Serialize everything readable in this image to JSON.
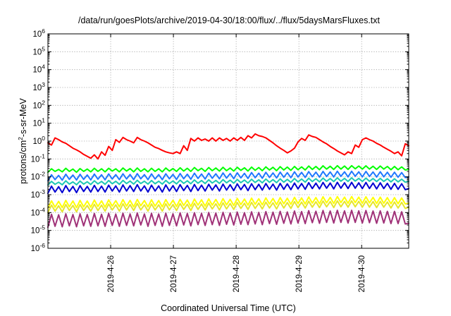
{
  "chart_data": {
    "type": "line",
    "title": "/data/run/goesPlots/archive/2019-04-30/18:00/flux/../flux/5daysMarsFluxes.txt",
    "xlabel": "Coordinated Universal Time (UTC)",
    "ylabel": {
      "prefix": "protons/cm",
      "sup": "2",
      "suffix": "-s-sr-MeV"
    },
    "x_start": "2019-04-25T00:00Z",
    "x_end": "2019-04-30T18:00Z",
    "x_ticks": [
      "2019-4-26",
      "2019-4-27",
      "2019-4-28",
      "2019-4-29",
      "2019-4-30"
    ],
    "y_scale": "log",
    "ylim": [
      1e-06,
      1000000.0
    ],
    "y_ticks": [
      {
        "base": "10",
        "exp": "-6"
      },
      {
        "base": "10",
        "exp": "-5"
      },
      {
        "base": "10",
        "exp": "-4"
      },
      {
        "base": "10",
        "exp": "-3"
      },
      {
        "base": "10",
        "exp": "-2"
      },
      {
        "base": "10",
        "exp": "-1"
      },
      {
        "base": "10",
        "exp": "0"
      },
      {
        "base": "10",
        "exp": "1"
      },
      {
        "base": "10",
        "exp": "2"
      },
      {
        "base": "10",
        "exp": "3"
      },
      {
        "base": "10",
        "exp": "4"
      },
      {
        "base": "10",
        "exp": "5"
      },
      {
        "base": "10",
        "exp": "6"
      }
    ],
    "grid": true,
    "series": [
      {
        "color": "#ff0000",
        "x": [
          "2019-04-25T00:00Z",
          "2019-04-25T01:22Z",
          "2019-04-25T02:44Z",
          "2019-04-25T04:06Z",
          "2019-04-25T05:28Z",
          "2019-04-25T06:50Z",
          "2019-04-25T08:12Z",
          "2019-04-25T09:34Z",
          "2019-04-25T10:56Z",
          "2019-04-25T12:18Z",
          "2019-04-25T13:40Z",
          "2019-04-25T15:02Z",
          "2019-04-25T16:24Z",
          "2019-04-25T17:46Z",
          "2019-04-25T19:08Z",
          "2019-04-25T20:30Z",
          "2019-04-25T21:52Z",
          "2019-04-25T23:14Z",
          "2019-04-26T00:36Z",
          "2019-04-26T01:58Z",
          "2019-04-26T03:20Z",
          "2019-04-26T04:42Z",
          "2019-04-26T06:04Z",
          "2019-04-26T07:26Z",
          "2019-04-26T08:48Z",
          "2019-04-26T10:10Z",
          "2019-04-26T11:32Z",
          "2019-04-26T12:54Z",
          "2019-04-26T14:16Z",
          "2019-04-26T15:38Z",
          "2019-04-26T17:00Z",
          "2019-04-26T18:22Z",
          "2019-04-26T19:44Z",
          "2019-04-26T21:06Z",
          "2019-04-26T22:28Z",
          "2019-04-26T23:50Z",
          "2019-04-27T01:12Z",
          "2019-04-27T02:34Z",
          "2019-04-27T03:56Z",
          "2019-04-27T05:18Z",
          "2019-04-27T06:40Z",
          "2019-04-27T08:02Z",
          "2019-04-27T09:24Z",
          "2019-04-27T10:46Z",
          "2019-04-27T12:08Z",
          "2019-04-27T13:30Z",
          "2019-04-27T14:52Z",
          "2019-04-27T16:14Z",
          "2019-04-27T17:36Z",
          "2019-04-27T18:58Z",
          "2019-04-27T20:20Z",
          "2019-04-27T21:42Z",
          "2019-04-27T23:04Z",
          "2019-04-28T00:26Z",
          "2019-04-28T01:48Z",
          "2019-04-28T03:10Z",
          "2019-04-28T04:32Z",
          "2019-04-28T05:54Z",
          "2019-04-28T07:16Z",
          "2019-04-28T08:38Z",
          "2019-04-28T10:00Z",
          "2019-04-28T11:22Z",
          "2019-04-28T12:44Z",
          "2019-04-28T14:06Z",
          "2019-04-28T15:28Z",
          "2019-04-28T16:50Z",
          "2019-04-28T18:12Z",
          "2019-04-28T19:34Z",
          "2019-04-28T20:56Z",
          "2019-04-28T22:18Z",
          "2019-04-28T23:40Z",
          "2019-04-29T01:02Z",
          "2019-04-29T02:24Z",
          "2019-04-29T03:46Z",
          "2019-04-29T05:08Z",
          "2019-04-29T06:30Z",
          "2019-04-29T07:52Z",
          "2019-04-29T09:14Z",
          "2019-04-29T10:36Z",
          "2019-04-29T11:58Z",
          "2019-04-29T13:20Z",
          "2019-04-29T14:42Z",
          "2019-04-29T16:04Z",
          "2019-04-29T17:26Z",
          "2019-04-29T18:48Z",
          "2019-04-29T20:10Z",
          "2019-04-29T21:32Z",
          "2019-04-29T22:54Z",
          "2019-04-30T00:16Z",
          "2019-04-30T01:38Z",
          "2019-04-30T03:00Z",
          "2019-04-30T04:22Z",
          "2019-04-30T05:44Z",
          "2019-04-30T07:06Z",
          "2019-04-30T08:28Z",
          "2019-04-30T09:50Z",
          "2019-04-30T11:12Z",
          "2019-04-30T12:34Z",
          "2019-04-30T13:56Z",
          "2019-04-30T15:18Z",
          "2019-04-30T16:40Z",
          "2019-04-30T18:00Z"
        ],
        "values": [
          0.8,
          0.6,
          1.5,
          1.2,
          0.9,
          0.75,
          0.55,
          0.4,
          0.32,
          0.25,
          0.18,
          0.14,
          0.11,
          0.17,
          0.1,
          0.25,
          0.16,
          0.5,
          0.3,
          1.2,
          0.85,
          1.6,
          1.2,
          1.0,
          0.8,
          1.6,
          1.2,
          1.0,
          0.8,
          0.6,
          0.45,
          0.38,
          0.3,
          0.25,
          0.22,
          0.2,
          0.25,
          0.2,
          0.55,
          0.3,
          1.4,
          1.0,
          1.5,
          1.1,
          1.3,
          1.0,
          1.5,
          1.0,
          1.5,
          1.1,
          1.4,
          1.0,
          1.5,
          1.1,
          1.6,
          1.1,
          2.0,
          1.5,
          2.5,
          2.0,
          1.8,
          1.5,
          1.1,
          0.8,
          0.55,
          0.4,
          0.3,
          0.22,
          0.28,
          0.4,
          0.9,
          1.4,
          1.1,
          2.2,
          1.8,
          1.6,
          1.2,
          0.9,
          0.7,
          0.5,
          0.38,
          0.28,
          0.22,
          0.17,
          0.25,
          0.2,
          0.6,
          0.45,
          1.2,
          1.5,
          1.2,
          1.0,
          0.75,
          0.6,
          0.45,
          0.35,
          0.27,
          0.2,
          0.25,
          0.15,
          0.7,
          0.55
        ]
      },
      {
        "color": "#00ff00",
        "values": [
          0.018,
          0.028,
          0.02,
          0.026,
          0.019,
          0.03,
          0.02,
          0.027,
          0.018,
          0.029,
          0.02,
          0.027,
          0.019,
          0.03,
          0.02,
          0.028,
          0.019,
          0.03,
          0.021,
          0.028,
          0.019,
          0.031,
          0.021,
          0.029,
          0.019,
          0.031,
          0.02,
          0.028,
          0.019,
          0.03,
          0.02,
          0.028,
          0.019,
          0.031,
          0.021,
          0.029,
          0.02,
          0.032,
          0.021,
          0.03,
          0.02,
          0.033,
          0.022,
          0.03,
          0.02,
          0.033,
          0.022,
          0.031,
          0.021,
          0.034,
          0.022,
          0.031,
          0.021,
          0.034,
          0.023,
          0.032,
          0.021,
          0.035,
          0.023,
          0.033,
          0.022,
          0.036,
          0.024,
          0.034,
          0.022,
          0.037,
          0.024,
          0.035,
          0.023,
          0.038,
          0.025,
          0.036,
          0.024,
          0.04,
          0.026,
          0.038,
          0.025,
          0.041,
          0.027,
          0.039,
          0.026,
          0.042,
          0.027,
          0.04,
          0.026,
          0.042,
          0.028,
          0.04,
          0.027,
          0.041,
          0.027,
          0.039,
          0.026,
          0.04,
          0.027,
          0.038,
          0.025,
          0.038,
          0.025,
          0.036,
          0.024,
          0.026
        ]
      },
      {
        "color": "#1ec8b4",
        "values": [
          0.0035,
          0.0055,
          0.0038,
          0.005,
          0.0036,
          0.006,
          0.0039,
          0.0052,
          0.0036,
          0.0058,
          0.0039,
          0.0053,
          0.0037,
          0.006,
          0.004,
          0.0055,
          0.0038,
          0.0062,
          0.0041,
          0.0056,
          0.0038,
          0.0063,
          0.0042,
          0.0058,
          0.0039,
          0.0064,
          0.0042,
          0.0057,
          0.0039,
          0.0062,
          0.0041,
          0.0057,
          0.0039,
          0.0063,
          0.0042,
          0.0059,
          0.004,
          0.0065,
          0.0043,
          0.006,
          0.0041,
          0.0067,
          0.0044,
          0.0062,
          0.0042,
          0.0068,
          0.0045,
          0.0063,
          0.0043,
          0.007,
          0.0046,
          0.0065,
          0.0044,
          0.0071,
          0.0047,
          0.0066,
          0.0045,
          0.0073,
          0.0048,
          0.0068,
          0.0046,
          0.0075,
          0.0049,
          0.007,
          0.0047,
          0.0077,
          0.005,
          0.0072,
          0.0049,
          0.008,
          0.0052,
          0.0075,
          0.005,
          0.0083,
          0.0054,
          0.0078,
          0.0052,
          0.0085,
          0.0056,
          0.008,
          0.0054,
          0.0088,
          0.0057,
          0.0082,
          0.0055,
          0.0088,
          0.0058,
          0.0082,
          0.0055,
          0.0085,
          0.0056,
          0.008,
          0.0054,
          0.0082,
          0.0055,
          0.0078,
          0.0052,
          0.0078,
          0.0052,
          0.0074,
          0.005,
          0.0055
        ]
      },
      {
        "color": "#1e78ff",
        "values": [
          0.006,
          0.013,
          0.007,
          0.012,
          0.0065,
          0.014,
          0.0072,
          0.0125,
          0.0066,
          0.0138,
          0.0072,
          0.0126,
          0.0067,
          0.0142,
          0.0074,
          0.013,
          0.0068,
          0.0145,
          0.0075,
          0.0132,
          0.0069,
          0.0148,
          0.0076,
          0.0134,
          0.007,
          0.015,
          0.0077,
          0.0132,
          0.0069,
          0.0146,
          0.0075,
          0.0132,
          0.0069,
          0.0148,
          0.0077,
          0.0136,
          0.0071,
          0.0152,
          0.0078,
          0.014,
          0.0073,
          0.0158,
          0.0081,
          0.0144,
          0.0075,
          0.016,
          0.0083,
          0.0148,
          0.0077,
          0.0165,
          0.0085,
          0.0152,
          0.0079,
          0.0168,
          0.0087,
          0.0156,
          0.0081,
          0.0172,
          0.0089,
          0.016,
          0.0083,
          0.0178,
          0.0092,
          0.0165,
          0.0086,
          0.0182,
          0.0094,
          0.017,
          0.0089,
          0.019,
          0.0098,
          0.0176,
          0.0092,
          0.0196,
          0.0101,
          0.0182,
          0.0095,
          0.02,
          0.0104,
          0.0186,
          0.0098,
          0.0205,
          0.0106,
          0.019,
          0.0099,
          0.0205,
          0.0107,
          0.019,
          0.0099,
          0.02,
          0.0104,
          0.0186,
          0.0097,
          0.0192,
          0.01,
          0.018,
          0.0094,
          0.018,
          0.0094,
          0.0172,
          0.009,
          0.01
        ]
      },
      {
        "color": "#0000d2",
        "values": [
          0.0012,
          0.003,
          0.0014,
          0.0028,
          0.0013,
          0.0032,
          0.0015,
          0.0029,
          0.0013,
          0.0032,
          0.0015,
          0.0029,
          0.0014,
          0.0033,
          0.0015,
          0.003,
          0.0014,
          0.0034,
          0.0016,
          0.0031,
          0.0014,
          0.0035,
          0.0016,
          0.0032,
          0.0015,
          0.0036,
          0.0016,
          0.0031,
          0.0014,
          0.0034,
          0.0016,
          0.0031,
          0.0014,
          0.0035,
          0.0016,
          0.0032,
          0.0015,
          0.0036,
          0.0017,
          0.0033,
          0.0015,
          0.0037,
          0.0017,
          0.0034,
          0.0016,
          0.0038,
          0.0018,
          0.0035,
          0.0016,
          0.0039,
          0.0018,
          0.0036,
          0.0017,
          0.004,
          0.0019,
          0.0037,
          0.0017,
          0.0041,
          0.0019,
          0.0038,
          0.0018,
          0.0042,
          0.002,
          0.0039,
          0.0018,
          0.0043,
          0.002,
          0.004,
          0.0019,
          0.0045,
          0.0021,
          0.0042,
          0.002,
          0.0047,
          0.0022,
          0.0044,
          0.0021,
          0.0048,
          0.0023,
          0.0045,
          0.0021,
          0.0049,
          0.0023,
          0.0046,
          0.0022,
          0.0049,
          0.0023,
          0.0046,
          0.0022,
          0.0048,
          0.0022,
          0.0045,
          0.0021,
          0.0046,
          0.0022,
          0.0043,
          0.002,
          0.0043,
          0.002,
          0.0041,
          0.0019,
          0.0022
        ]
      },
      {
        "color": "#e6e62d",
        "values": [
          0.0001,
          0.00026,
          0.00012,
          0.00024,
          0.00011,
          0.00028,
          0.00013,
          0.00025,
          0.00011,
          0.00028,
          0.00013,
          0.00025,
          0.00012,
          0.00029,
          0.00013,
          0.00026,
          0.00012,
          0.0003,
          0.00014,
          0.00027,
          0.00012,
          0.00031,
          0.00014,
          0.00028,
          0.00013,
          0.00032,
          0.00014,
          0.00027,
          0.00012,
          0.0003,
          0.00014,
          0.00027,
          0.00012,
          0.00031,
          0.00014,
          0.00028,
          0.00013,
          0.00032,
          0.00015,
          0.00029,
          0.00013,
          0.00033,
          0.00015,
          0.0003,
          0.00014,
          0.00034,
          0.00016,
          0.00031,
          0.00014,
          0.00035,
          0.00016,
          0.00032,
          0.00015,
          0.00036,
          0.00017,
          0.00033,
          0.00015,
          0.00037,
          0.00017,
          0.00034,
          0.00016,
          0.00038,
          0.00018,
          0.00035,
          0.00016,
          0.00039,
          0.00018,
          0.00036,
          0.00017,
          0.00041,
          0.00019,
          0.00038,
          0.00018,
          0.00043,
          0.0002,
          0.0004,
          0.00019,
          0.00044,
          0.00021,
          0.00041,
          0.00019,
          0.00045,
          0.00021,
          0.00042,
          0.0002,
          0.00045,
          0.00021,
          0.00042,
          0.0002,
          0.00044,
          0.0002,
          0.00041,
          0.00019,
          0.00042,
          0.0002,
          0.00039,
          0.00018,
          0.00039,
          0.00018,
          0.00037,
          0.00017,
          0.0002
        ]
      },
      {
        "color": "#ffff00",
        "values": [
          0.00018,
          0.00045,
          0.0002,
          0.00042,
          0.00019,
          0.00048,
          0.00021,
          0.00044,
          0.00019,
          0.00048,
          0.00021,
          0.00044,
          0.0002,
          0.0005,
          0.00022,
          0.00045,
          0.0002,
          0.00051,
          0.00023,
          0.00046,
          0.00021,
          0.00053,
          0.00023,
          0.00048,
          0.00021,
          0.00054,
          0.00024,
          0.00047,
          0.00021,
          0.00052,
          0.00023,
          0.00047,
          0.00021,
          0.00053,
          0.00024,
          0.00049,
          0.00022,
          0.00055,
          0.00025,
          0.0005,
          0.00022,
          0.00057,
          0.00026,
          0.00052,
          0.00023,
          0.00058,
          0.00026,
          0.00054,
          0.00024,
          0.0006,
          0.00027,
          0.00055,
          0.00025,
          0.00062,
          0.00028,
          0.00057,
          0.00026,
          0.00064,
          0.00029,
          0.00059,
          0.00027,
          0.00066,
          0.0003,
          0.00061,
          0.00028,
          0.00068,
          0.00031,
          0.00063,
          0.00029,
          0.00071,
          0.00032,
          0.00066,
          0.0003,
          0.00074,
          0.00034,
          0.00069,
          0.00031,
          0.00076,
          0.00035,
          0.00071,
          0.00032,
          0.00078,
          0.00036,
          0.00073,
          0.00033,
          0.00078,
          0.00036,
          0.00073,
          0.00033,
          0.00076,
          0.00035,
          0.00071,
          0.00032,
          0.00073,
          0.00033,
          0.00068,
          0.00031,
          0.00068,
          0.00031,
          0.00065,
          0.0003,
          0.00033
        ]
      },
      {
        "color": "#a03278",
        "values": [
          1.5e-05,
          8e-05,
          1.7e-05,
          7.5e-05,
          1.6e-05,
          8.5e-05,
          1.8e-05,
          7.8e-05,
          1.6e-05,
          8.5e-05,
          1.8e-05,
          7.8e-05,
          1.7e-05,
          8.8e-05,
          1.8e-05,
          8e-05,
          1.7e-05,
          9e-05,
          1.9e-05,
          8.2e-05,
          1.7e-05,
          9.2e-05,
          1.9e-05,
          8.4e-05,
          1.8e-05,
          9.4e-05,
          2e-05,
          8.3e-05,
          1.7e-05,
          9e-05,
          1.9e-05,
          8.3e-05,
          1.7e-05,
          9.2e-05,
          1.9e-05,
          8.5e-05,
          1.8e-05,
          9.6e-05,
          2e-05,
          8.8e-05,
          1.8e-05,
          9.8e-05,
          2.1e-05,
          9e-05,
          1.9e-05,
          0.0001,
          2.1e-05,
          9.3e-05,
          1.9e-05,
          0.000103,
          2.2e-05,
          9.5e-05,
          2e-05,
          0.000106,
          2.2e-05,
          9.8e-05,
          2.1e-05,
          0.00011,
          2.3e-05,
          0.000101,
          2.1e-05,
          0.000113,
          2.4e-05,
          0.000105,
          2.2e-05,
          0.000117,
          2.5e-05,
          0.000108,
          2.3e-05,
          0.000122,
          2.6e-05,
          0.000113,
          2.4e-05,
          0.000127,
          2.7e-05,
          0.000118,
          2.5e-05,
          0.00013,
          2.8e-05,
          0.000121,
          2.6e-05,
          0.000133,
          2.8e-05,
          0.000124,
          2.6e-05,
          0.000133,
          2.8e-05,
          0.000124,
          2.6e-05,
          0.00013,
          2.7e-05,
          0.000121,
          2.5e-05,
          0.000124,
          2.6e-05,
          0.000116,
          2.4e-05,
          0.000116,
          2.4e-05,
          0.00011,
          2.3e-05,
          2.5e-05
        ]
      }
    ]
  }
}
